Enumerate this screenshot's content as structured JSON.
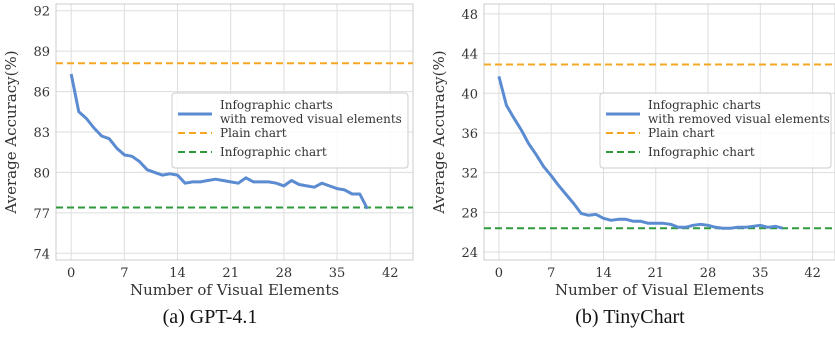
{
  "captions": [
    "(a) GPT-4.1",
    "(b) TinyChart"
  ],
  "colors": {
    "series": "#5b8bd0",
    "plain": "#f5a623",
    "infographic": "#2e9a3a",
    "grid": "#dddddd",
    "frame": "#cccccc"
  },
  "legend_labels": [
    "Infographic charts\nwith removed visual elements",
    "Plain chart",
    "Infographic chart"
  ],
  "chart_data": [
    {
      "type": "line",
      "title": "",
      "xlabel": "Number of Visual Elements",
      "ylabel": "Average Accuracy(%)",
      "xlim": [
        -2,
        45
      ],
      "ylim": [
        73.5,
        92.5
      ],
      "xticks": [
        0,
        7,
        14,
        21,
        28,
        35,
        42
      ],
      "yticks": [
        74,
        77,
        80,
        83,
        86,
        89,
        92
      ],
      "grid": true,
      "legend_position": "center-right",
      "series": [
        {
          "name": "Infographic charts\nwith removed visual elements",
          "x": [
            0,
            1,
            2,
            3,
            4,
            5,
            6,
            7,
            8,
            9,
            10,
            11,
            12,
            13,
            14,
            15,
            16,
            17,
            18,
            19,
            20,
            21,
            22,
            23,
            24,
            25,
            26,
            27,
            28,
            29,
            30,
            31,
            32,
            33,
            34,
            35,
            36,
            37,
            38,
            39
          ],
          "y": [
            87.3,
            84.5,
            84.0,
            83.3,
            82.7,
            82.5,
            81.8,
            81.3,
            81.2,
            80.8,
            80.2,
            80.0,
            79.8,
            79.9,
            79.8,
            79.2,
            79.3,
            79.3,
            79.4,
            79.5,
            79.4,
            79.3,
            79.2,
            79.6,
            79.3,
            79.3,
            79.3,
            79.2,
            79.0,
            79.4,
            79.1,
            79.0,
            78.9,
            79.2,
            79.0,
            78.8,
            78.7,
            78.4,
            78.4,
            77.3
          ]
        }
      ],
      "reference_lines": [
        {
          "name": "Plain chart",
          "y": 88.1,
          "style": "dashed"
        },
        {
          "name": "Infographic chart",
          "y": 77.4,
          "style": "dashed"
        }
      ]
    },
    {
      "type": "line",
      "title": "",
      "xlabel": "Number of Visual Elements",
      "ylabel": "Average Accuracy(%)",
      "xlim": [
        -2,
        45
      ],
      "ylim": [
        23.2,
        49
      ],
      "xticks": [
        0,
        7,
        14,
        21,
        28,
        35,
        42
      ],
      "yticks": [
        24,
        28,
        32,
        36,
        40,
        44,
        48
      ],
      "grid": true,
      "legend_position": "center-right",
      "series": [
        {
          "name": "Infographic charts\nwith removed visual elements",
          "x": [
            0,
            1,
            2,
            3,
            4,
            5,
            6,
            7,
            8,
            9,
            10,
            11,
            12,
            13,
            14,
            15,
            16,
            17,
            18,
            19,
            20,
            21,
            22,
            23,
            24,
            25,
            26,
            27,
            28,
            29,
            30,
            31,
            32,
            33,
            34,
            35,
            36,
            37,
            38
          ],
          "y": [
            41.7,
            38.8,
            37.5,
            36.3,
            34.9,
            33.8,
            32.6,
            31.7,
            30.7,
            29.8,
            28.9,
            27.9,
            27.7,
            27.8,
            27.4,
            27.2,
            27.3,
            27.3,
            27.1,
            27.1,
            26.9,
            26.9,
            26.9,
            26.8,
            26.5,
            26.5,
            26.7,
            26.8,
            26.7,
            26.5,
            26.4,
            26.4,
            26.5,
            26.5,
            26.6,
            26.7,
            26.5,
            26.6,
            26.4
          ]
        }
      ],
      "reference_lines": [
        {
          "name": "Plain chart",
          "y": 42.9,
          "style": "dashed"
        },
        {
          "name": "Infographic chart",
          "y": 26.4,
          "style": "dashed"
        }
      ]
    }
  ]
}
